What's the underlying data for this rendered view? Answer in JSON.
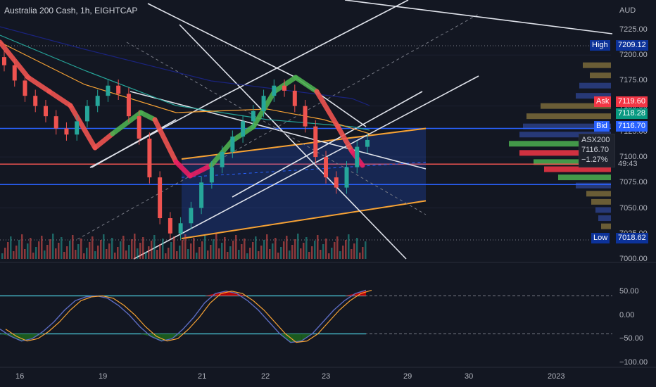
{
  "header": {
    "title": "Australia 200 Cash, 1h, EIGHTCAP",
    "currency": "AUD"
  },
  "colors": {
    "bg": "#131722",
    "up": "#26a69a",
    "down": "#ef5350",
    "accent_blue": "#2962ff",
    "orange": "#f7a234"
  },
  "chart_data": [
    {
      "type": "candlestick",
      "ylim": [
        7000,
        7240
      ],
      "price_ticks": [
        "7225.00",
        "7200.00",
        "7175.00",
        "7150.00",
        "7125.00",
        "7100.00",
        "7075.00",
        "7050.00",
        "7025.00",
        "7000.00"
      ],
      "x_ticks": [
        "16",
        "19",
        "21",
        "22",
        "23",
        "29",
        "30",
        "2023"
      ],
      "close_series": [
        7190,
        7175,
        7160,
        7150,
        7140,
        7128,
        7122,
        7135,
        7150,
        7160,
        7170,
        7162,
        7140,
        7118,
        7080,
        7040,
        7025,
        7035,
        7050,
        7075,
        7090,
        7105,
        7120,
        7135,
        7145,
        7160,
        7170,
        7165,
        7150,
        7130,
        7100,
        7080,
        7070,
        7090,
        7110,
        7116.7
      ],
      "labels": {
        "high_label": "High",
        "high_value": "7209.12",
        "ask_label": "Ask",
        "ask_value": "7119.60",
        "mid_value": "7118.28",
        "bid_label": "Bid",
        "bid_value": "7116.70",
        "low_label": "Low",
        "low_value": "7018.62",
        "symbol": "ASX200",
        "last": "7116.70",
        "change": "−1.27%",
        "countdown": "49:43"
      }
    },
    {
      "type": "oscillator",
      "ylim": [
        -100,
        100
      ],
      "ticks": [
        "50.00",
        "0.00",
        "−50.00",
        "−100.00"
      ],
      "levels": [
        40,
        -40
      ],
      "line_values": [
        -30,
        -45,
        -55,
        -50,
        -35,
        -15,
        10,
        30,
        38,
        40,
        35,
        20,
        0,
        -25,
        -45,
        -55,
        -50,
        -30,
        -5,
        25,
        45,
        50,
        45,
        30,
        10,
        -15,
        -40,
        -58,
        -55,
        -40,
        -15,
        10,
        30,
        45,
        52
      ]
    }
  ]
}
